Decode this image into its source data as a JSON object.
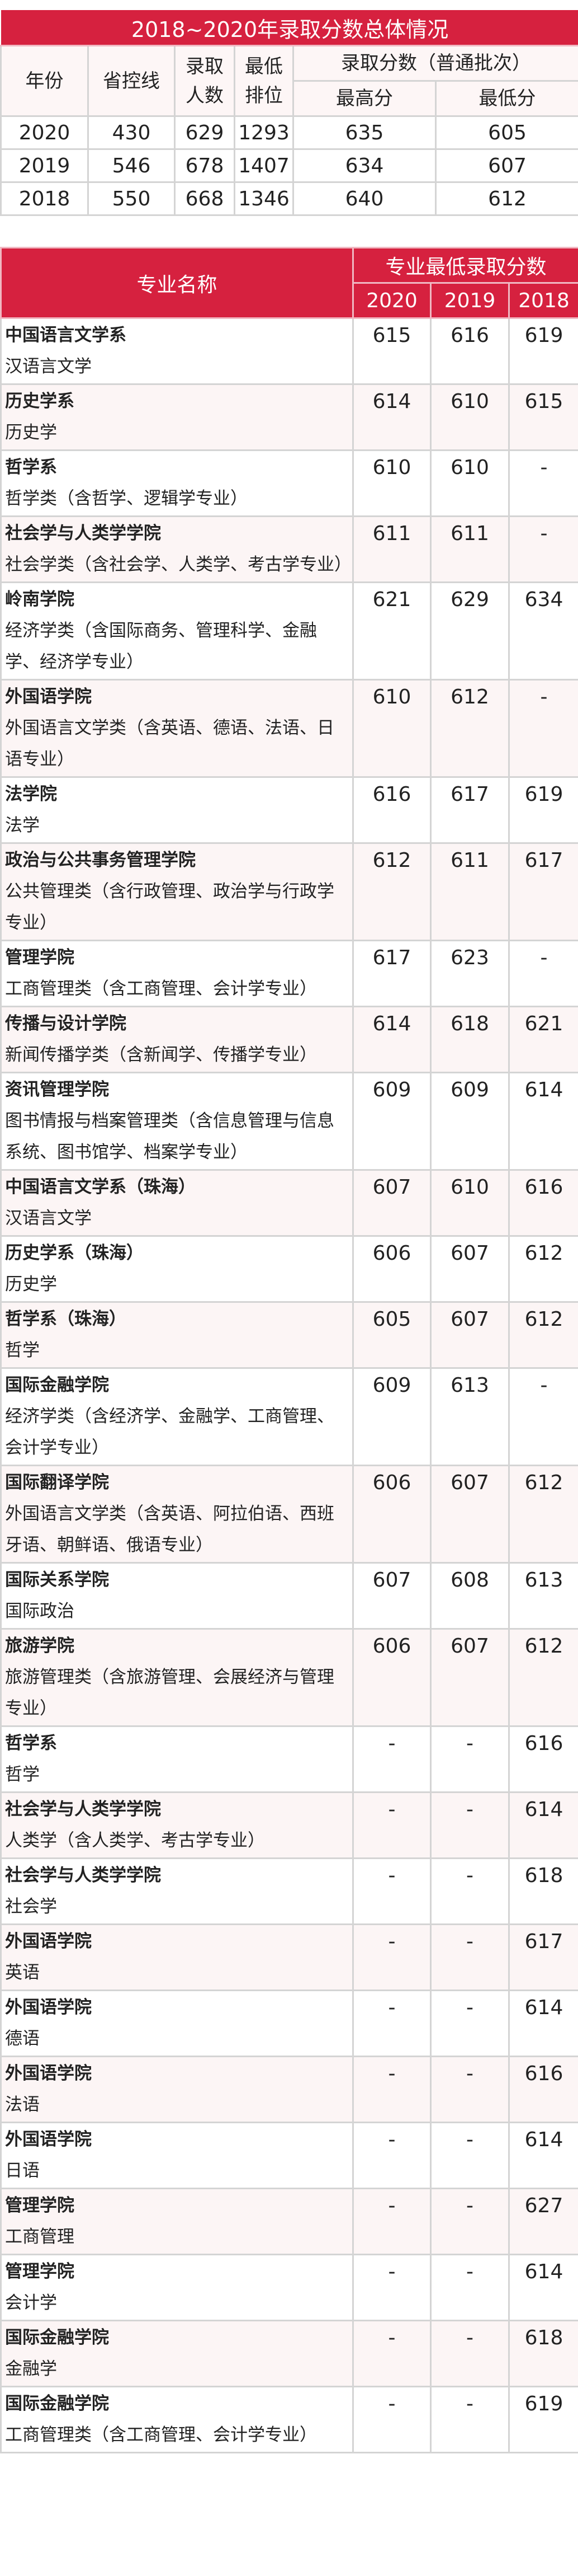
{
  "summary": {
    "title": "2018~2020年录取分数总体情况",
    "headers": {
      "year": "年份",
      "control_line": "省控线",
      "admitted_1": "录取",
      "admitted_2": "人数",
      "rank_1": "最低",
      "rank_2": "排位",
      "score_group": "录取分数（普通批次）",
      "max": "最高分",
      "min": "最低分"
    },
    "rows": [
      {
        "year": "2020",
        "control_line": "430",
        "admitted": "629",
        "rank": "1293",
        "max": "635",
        "min": "605"
      },
      {
        "year": "2019",
        "control_line": "546",
        "admitted": "678",
        "rank": "1407",
        "max": "634",
        "min": "607"
      },
      {
        "year": "2018",
        "control_line": "550",
        "admitted": "668",
        "rank": "1346",
        "max": "640",
        "min": "612"
      }
    ]
  },
  "majors": {
    "headers": {
      "name": "专业名称",
      "group": "专业最低录取分数",
      "y2020": "2020",
      "y2019": "2019",
      "y2018": "2018"
    },
    "rows": [
      {
        "school": "中国语言文学系",
        "major": "汉语言文学",
        "s2020": "615",
        "s2019": "616",
        "s2018": "619"
      },
      {
        "school": "历史学系",
        "major": "历史学",
        "s2020": "614",
        "s2019": "610",
        "s2018": "615"
      },
      {
        "school": "哲学系",
        "major": "哲学类（含哲学、逻辑学专业）",
        "s2020": "610",
        "s2019": "610",
        "s2018": "-"
      },
      {
        "school": "社会学与人类学学院",
        "major": "社会学类（含社会学、人类学、考古学专业）",
        "s2020": "611",
        "s2019": "611",
        "s2018": "-"
      },
      {
        "school": "岭南学院",
        "major": "经济学类（含国际商务、管理科学、金融学、经济学专业）",
        "s2020": "621",
        "s2019": "629",
        "s2018": "634"
      },
      {
        "school": "外国语学院",
        "major": "外国语言文学类（含英语、德语、法语、日语专业）",
        "s2020": "610",
        "s2019": "612",
        "s2018": "-"
      },
      {
        "school": "法学院",
        "major": "法学",
        "s2020": "616",
        "s2019": "617",
        "s2018": "619"
      },
      {
        "school": "政治与公共事务管理学院",
        "major": "公共管理类（含行政管理、政治学与行政学专业）",
        "s2020": "612",
        "s2019": "611",
        "s2018": "617"
      },
      {
        "school": "管理学院",
        "major": "工商管理类（含工商管理、会计学专业）",
        "s2020": "617",
        "s2019": "623",
        "s2018": "-"
      },
      {
        "school": "传播与设计学院",
        "major": "新闻传播学类（含新闻学、传播学专业）",
        "s2020": "614",
        "s2019": "618",
        "s2018": "621"
      },
      {
        "school": "资讯管理学院",
        "major": "图书情报与档案管理类（含信息管理与信息系统、图书馆学、档案学专业）",
        "s2020": "609",
        "s2019": "609",
        "s2018": "614"
      },
      {
        "school": "中国语言文学系（珠海）",
        "major": "汉语言文学",
        "s2020": "607",
        "s2019": "610",
        "s2018": "616"
      },
      {
        "school": "历史学系（珠海）",
        "major": "历史学",
        "s2020": "606",
        "s2019": "607",
        "s2018": "612"
      },
      {
        "school": "哲学系（珠海）",
        "major": "哲学",
        "s2020": "605",
        "s2019": "607",
        "s2018": "612"
      },
      {
        "school": "国际金融学院",
        "major": "经济学类（含经济学、金融学、工商管理、会计学专业）",
        "s2020": "609",
        "s2019": "613",
        "s2018": "-"
      },
      {
        "school": "国际翻译学院",
        "major": "外国语言文学类（含英语、阿拉伯语、西班牙语、朝鲜语、俄语专业）",
        "s2020": "606",
        "s2019": "607",
        "s2018": "612"
      },
      {
        "school": "国际关系学院",
        "major": "国际政治",
        "s2020": "607",
        "s2019": "608",
        "s2018": "613"
      },
      {
        "school": "旅游学院",
        "major": "旅游管理类（含旅游管理、会展经济与管理专业）",
        "s2020": "606",
        "s2019": "607",
        "s2018": "612"
      },
      {
        "school": "哲学系",
        "major": "哲学",
        "s2020": "-",
        "s2019": "-",
        "s2018": "616"
      },
      {
        "school": "社会学与人类学学院",
        "major": "人类学（含人类学、考古学专业）",
        "s2020": "-",
        "s2019": "-",
        "s2018": "614"
      },
      {
        "school": "社会学与人类学学院",
        "major": "社会学",
        "s2020": "-",
        "s2019": "-",
        "s2018": "618"
      },
      {
        "school": "外国语学院",
        "major": "英语",
        "s2020": "-",
        "s2019": "-",
        "s2018": "617"
      },
      {
        "school": "外国语学院",
        "major": "德语",
        "s2020": "-",
        "s2019": "-",
        "s2018": "614"
      },
      {
        "school": "外国语学院",
        "major": "法语",
        "s2020": "-",
        "s2019": "-",
        "s2018": "616"
      },
      {
        "school": "外国语学院",
        "major": "日语",
        "s2020": "-",
        "s2019": "-",
        "s2018": "614"
      },
      {
        "school": "管理学院",
        "major": "工商管理",
        "s2020": "-",
        "s2019": "-",
        "s2018": "627"
      },
      {
        "school": "管理学院",
        "major": "会计学",
        "s2020": "-",
        "s2019": "-",
        "s2018": "614"
      },
      {
        "school": "国际金融学院",
        "major": "金融学",
        "s2020": "-",
        "s2019": "-",
        "s2018": "618"
      },
      {
        "school": "国际金融学院",
        "major": "工商管理类（含工商管理、会计学专业）",
        "s2020": "-",
        "s2019": "-",
        "s2018": "619"
      }
    ]
  },
  "colors": {
    "accent": "#d6213f",
    "row_alt": "#fcf5f5",
    "border": "#d4d4d4"
  }
}
